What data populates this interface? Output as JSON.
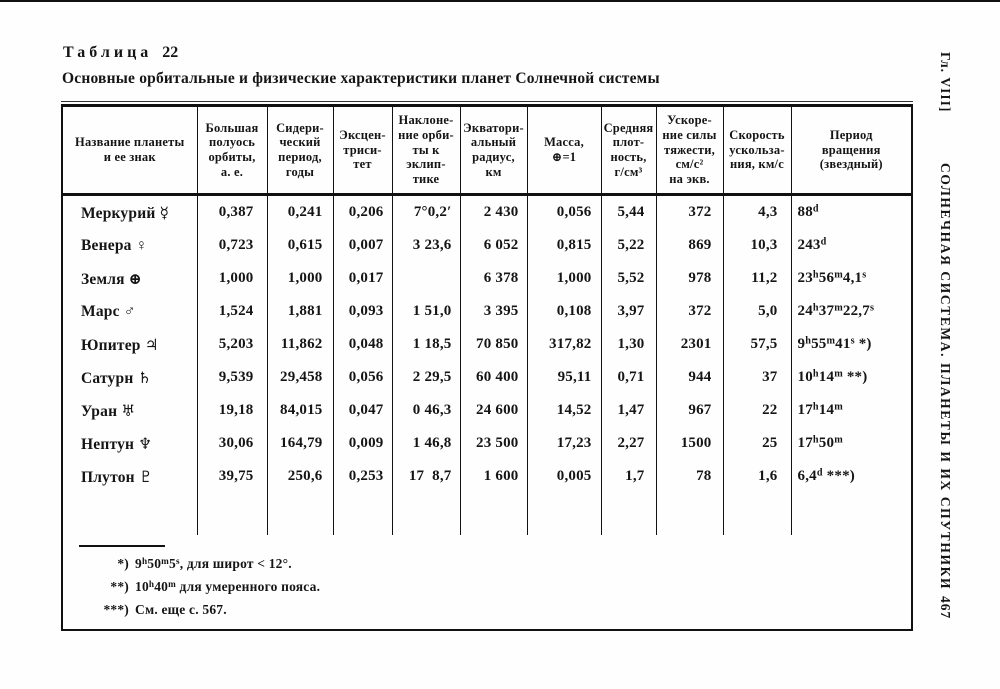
{
  "page": {
    "table_label_word": "Таблица",
    "table_label_number": "22",
    "subtitle": "Основные орбитальные и физические характеристики планет Солнечной системы",
    "margin": {
      "chapter": "Гл. VIII]",
      "running_title": "СОЛНЕЧНАЯ СИСТЕМА. ПЛАНЕТЫ И ИХ СПУТНИКИ",
      "page_number": "467"
    }
  },
  "table": {
    "columns": [
      "Название планеты\nи ее знак",
      "Большая\nполуось\nорбиты,\nа. е.",
      "Сидери-\nческий\nпериод,\nгоды",
      "Эксцен-\nтриси-\nтет",
      "Наклоне-\nние орби-\nты к\nэклип-\nтике",
      "Экватори-\nальный\nрадиус,\nкм",
      "Масса,\n⊕=1",
      "Средняя\nплот-\nность,\nг/см³",
      "Ускоре-\nние силы\nтяжести,\nсм/с²\nна экв.",
      "Скорость\nускольза-\nния, км/с",
      "Период\nвращения\n(звездный)"
    ],
    "rows": [
      [
        "Меркурий ☿",
        "0,387",
        "0,241",
        "0,206",
        "7°0,2′",
        "2 430",
        "0,056",
        "5,44",
        "372",
        "4,3",
        "88^d"
      ],
      [
        "Венера ♀",
        "0,723",
        "0,615",
        "0,007",
        "3 23,6",
        "6 052",
        "0,815",
        "5,22",
        "869",
        "10,3",
        "243^d"
      ],
      [
        "Земля ⊕",
        "1,000",
        "1,000",
        "0,017",
        "",
        "6 378",
        "1,000",
        "5,52",
        "978",
        "11,2",
        "23^h56^m4,1^s"
      ],
      [
        "Марс ♂",
        "1,524",
        "1,881",
        "0,093",
        "1 51,0",
        "3 395",
        "0,108",
        "3,97",
        "372",
        "5,0",
        "24^h37^m22,7^s"
      ],
      [
        "Юпитер ♃",
        "5,203",
        "11,862",
        "0,048",
        "1 18,5",
        "70 850",
        "317,82",
        "1,30",
        "2301",
        "57,5",
        "9^h55^m41^s *)"
      ],
      [
        "Сатурн ♄",
        "9,539",
        "29,458",
        "0,056",
        "2 29,5",
        "60 400",
        "95,11",
        "0,71",
        "944",
        "37",
        "10^h14^m **)"
      ],
      [
        "Уран ♅",
        "19,18",
        "84,015",
        "0,047",
        "0 46,3",
        "24 600",
        "14,52",
        "1,47",
        "967",
        "22",
        "17^h14^m"
      ],
      [
        "Нептун ♆",
        "30,06",
        "164,79",
        "0,009",
        "1 46,8",
        "23 500",
        "17,23",
        "2,27",
        "1500",
        "25",
        "17^h50^m"
      ],
      [
        "Плутон ♇",
        "39,75",
        "250,6",
        "0,253",
        "17  8,7",
        "1 600",
        "0,005",
        "1,7",
        "78",
        "1,6",
        "6,4^d ***)"
      ]
    ],
    "footnotes": [
      {
        "marker": "*)",
        "text": "9^h50^m5^s, для широт < 12°."
      },
      {
        "marker": "**)",
        "text": "10^h40^m для умеренного пояса."
      },
      {
        "marker": "***)",
        "text": "См. еще с. 567."
      }
    ]
  }
}
